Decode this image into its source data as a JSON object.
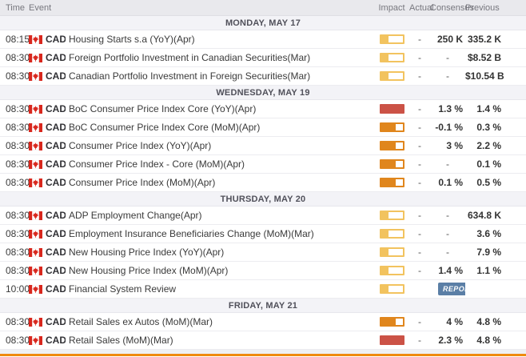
{
  "columns": {
    "time": "Time",
    "event": "Event",
    "impact": "Impact",
    "actual": "Actual",
    "consensus": "Consensus",
    "previous": "Previous"
  },
  "currency_label": "CAD",
  "flag_icon": "canada-flag-icon",
  "impact_colors": {
    "low": "#f2c35f",
    "medium": "#e0861d",
    "high": "#cb5246"
  },
  "accent_bottom_bar": "#ef8b0f",
  "report_badge": {
    "label": "REPORT",
    "bg": "#5b7fa6"
  },
  "sections": [
    {
      "date": "MONDAY, MAY 17",
      "events": [
        {
          "time": "08:15",
          "name": "Housing Starts s.a (YoY)(Apr)",
          "impact": "low",
          "actual": "-",
          "consensus": "250 K",
          "previous": "335.2 K"
        },
        {
          "time": "08:30",
          "name": "Foreign Portfolio Investment in Canadian Securities(Mar)",
          "impact": "low",
          "actual": "-",
          "consensus": "-",
          "previous": "$8.52 B"
        },
        {
          "time": "08:30",
          "name": "Canadian Portfolio Investment in Foreign Securities(Mar)",
          "impact": "low",
          "actual": "-",
          "consensus": "-",
          "previous": "$10.54 B"
        }
      ]
    },
    {
      "date": "WEDNESDAY, MAY 19",
      "events": [
        {
          "time": "08:30",
          "name": "BoC Consumer Price Index Core (YoY)(Apr)",
          "impact": "high",
          "actual": "-",
          "consensus": "1.3 %",
          "previous": "1.4 %"
        },
        {
          "time": "08:30",
          "name": "BoC Consumer Price Index Core (MoM)(Apr)",
          "impact": "medium",
          "actual": "-",
          "consensus": "-0.1 %",
          "previous": "0.3 %"
        },
        {
          "time": "08:30",
          "name": "Consumer Price Index (YoY)(Apr)",
          "impact": "medium",
          "actual": "-",
          "consensus": "3 %",
          "previous": "2.2 %"
        },
        {
          "time": "08:30",
          "name": "Consumer Price Index - Core (MoM)(Apr)",
          "impact": "medium",
          "actual": "-",
          "consensus": "-",
          "previous": "0.1 %"
        },
        {
          "time": "08:30",
          "name": "Consumer Price Index (MoM)(Apr)",
          "impact": "medium",
          "actual": "-",
          "consensus": "0.1 %",
          "previous": "0.5 %"
        }
      ]
    },
    {
      "date": "THURSDAY, MAY 20",
      "events": [
        {
          "time": "08:30",
          "name": "ADP Employment Change(Apr)",
          "impact": "low",
          "actual": "-",
          "consensus": "-",
          "previous": "634.8 K"
        },
        {
          "time": "08:30",
          "name": "Employment Insurance Beneficiaries Change (MoM)(Mar)",
          "impact": "low",
          "actual": "-",
          "consensus": "-",
          "previous": "3.6 %"
        },
        {
          "time": "08:30",
          "name": "New Housing Price Index (YoY)(Apr)",
          "impact": "low",
          "actual": "-",
          "consensus": "-",
          "previous": "7.9 %"
        },
        {
          "time": "08:30",
          "name": "New Housing Price Index (MoM)(Apr)",
          "impact": "low",
          "actual": "-",
          "consensus": "1.4 %",
          "previous": "1.1 %"
        },
        {
          "time": "10:00",
          "name": "Financial System Review",
          "impact": "low",
          "actual": "",
          "consensus_badge": "REPORT",
          "previous": ""
        }
      ]
    },
    {
      "date": "FRIDAY, MAY 21",
      "events": [
        {
          "time": "08:30",
          "name": "Retail Sales ex Autos (MoM)(Mar)",
          "impact": "medium",
          "actual": "-",
          "consensus": "4 %",
          "previous": "4.8 %"
        },
        {
          "time": "08:30",
          "name": "Retail Sales (MoM)(Mar)",
          "impact": "high",
          "actual": "-",
          "consensus": "2.3 %",
          "previous": "4.8 %"
        }
      ]
    }
  ]
}
